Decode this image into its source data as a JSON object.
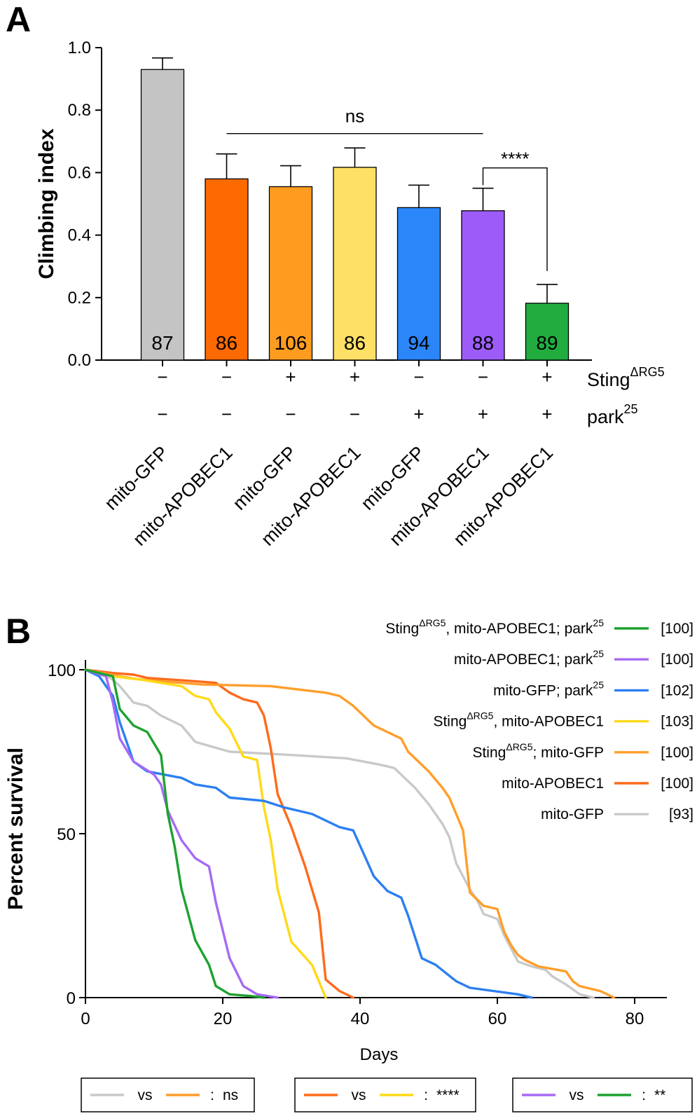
{
  "panels": {
    "a": "A",
    "b": "B"
  },
  "chart_data": [
    {
      "type": "bar",
      "ylabel": "Climbing index",
      "ylim": [
        0,
        1.0
      ],
      "yticks": [
        "0.0",
        "0.2",
        "0.4",
        "0.6",
        "0.8",
        "1.0"
      ],
      "ytick_values": [
        0,
        0.2,
        0.4,
        0.6,
        0.8,
        1.0
      ],
      "categories": [
        "mito-GFP",
        "mito-APOBEC1",
        "mito-GFP",
        "mito-APOBEC1",
        "mito-GFP",
        "mito-APOBEC1",
        "mito-APOBEC1"
      ],
      "values": [
        0.93,
        0.58,
        0.555,
        0.617,
        0.488,
        0.478,
        0.182
      ],
      "errors": [
        0.037,
        0.08,
        0.067,
        0.062,
        0.072,
        0.072,
        0.06
      ],
      "n_labels": [
        "87",
        "86",
        "106",
        "86",
        "94",
        "88",
        "89"
      ],
      "colors": [
        "#c4c4c4",
        "#ff6a00",
        "#ff9c1f",
        "#ffe066",
        "#2b86fa",
        "#9d5cf8",
        "#22ac3f"
      ],
      "rows": [
        {
          "label": "Sting",
          "superscript": "ΔRG5",
          "signs": [
            "−",
            "−",
            "+",
            "+",
            "−",
            "−",
            "+"
          ]
        },
        {
          "label": "park",
          "superscript": "25",
          "signs": [
            "−",
            "−",
            "−",
            "−",
            "+",
            "+",
            "+"
          ]
        }
      ],
      "annotations": [
        {
          "text": "ns",
          "from_bar": 2,
          "to_bar": 6,
          "y": 0.725
        },
        {
          "text": "****",
          "from_bar": 6,
          "to_bar": 7,
          "y": 0.615
        }
      ]
    },
    {
      "type": "line",
      "xlabel": "Days",
      "ylabel": "Percent survival",
      "xlim": [
        0,
        84
      ],
      "ylim": [
        0,
        110
      ],
      "xticks": [
        "0",
        "20",
        "40",
        "60",
        "80"
      ],
      "xtick_values": [
        0,
        20,
        40,
        60,
        80
      ],
      "yticks": [
        "0",
        "50",
        "100"
      ],
      "ytick_values": [
        0,
        50,
        100
      ],
      "series": [
        {
          "name": "mito-GFP",
          "n": "[93]",
          "color": "#c9c9c9",
          "points": [
            [
              0,
              100
            ],
            [
              2,
              99
            ],
            [
              4,
              97
            ],
            [
              5,
              95
            ],
            [
              7,
              90
            ],
            [
              9,
              89
            ],
            [
              11,
              86
            ],
            [
              12,
              85
            ],
            [
              14,
              83
            ],
            [
              16,
              78
            ],
            [
              21,
              75
            ],
            [
              30,
              74
            ],
            [
              38,
              73
            ],
            [
              43,
              71
            ],
            [
              45,
              70
            ],
            [
              46,
              68
            ],
            [
              48,
              64
            ],
            [
              50,
              59
            ],
            [
              52,
              53
            ],
            [
              53,
              49
            ],
            [
              54,
              41
            ],
            [
              56,
              33
            ],
            [
              57,
              30
            ],
            [
              58,
              25.5
            ],
            [
              60,
              24
            ],
            [
              61,
              19
            ],
            [
              63,
              11
            ],
            [
              65,
              9.5
            ],
            [
              67,
              8.5
            ],
            [
              68,
              6.5
            ],
            [
              70,
              4
            ],
            [
              72,
              1
            ],
            [
              74,
              0
            ]
          ]
        },
        {
          "name": "mito-APOBEC1",
          "n": "[100]",
          "color": "#ff6a1a",
          "points": [
            [
              0,
              100
            ],
            [
              4,
              99
            ],
            [
              7,
              98.5
            ],
            [
              9,
              97.5
            ],
            [
              16,
              96.5
            ],
            [
              19,
              96
            ],
            [
              21,
              93
            ],
            [
              23,
              91
            ],
            [
              25,
              90
            ],
            [
              26,
              86
            ],
            [
              27,
              76
            ],
            [
              28,
              62
            ],
            [
              30,
              52
            ],
            [
              32,
              40
            ],
            [
              34,
              26
            ],
            [
              35,
              5.5
            ],
            [
              37,
              2
            ],
            [
              39,
              0
            ]
          ]
        },
        {
          "name": "StingΔRG5; mito-GFP",
          "n": "[100]",
          "color": "#ff9e2a",
          "points": [
            [
              0,
              100
            ],
            [
              5,
              98
            ],
            [
              8,
              97
            ],
            [
              17,
              95.5
            ],
            [
              27,
              95
            ],
            [
              35,
              93
            ],
            [
              37,
              92
            ],
            [
              39,
              89
            ],
            [
              42,
              83
            ],
            [
              46,
              79
            ],
            [
              47,
              75
            ],
            [
              50,
              69
            ],
            [
              52,
              64
            ],
            [
              53,
              61
            ],
            [
              54,
              56
            ],
            [
              55,
              51
            ],
            [
              56,
              32
            ],
            [
              58,
              28
            ],
            [
              60,
              27
            ],
            [
              61,
              20
            ],
            [
              62,
              16
            ],
            [
              63,
              13
            ],
            [
              64,
              11.5
            ],
            [
              66,
              9.5
            ],
            [
              70,
              8
            ],
            [
              71,
              5
            ],
            [
              72,
              3.5
            ],
            [
              75,
              2
            ],
            [
              77,
              0
            ]
          ]
        },
        {
          "name": "StingΔRG5, mito-APOBEC1",
          "n": "[103]",
          "color": "#ffd918",
          "points": [
            [
              0,
              100
            ],
            [
              4,
              98
            ],
            [
              8,
              97
            ],
            [
              14,
              95
            ],
            [
              16,
              92
            ],
            [
              18,
              91
            ],
            [
              19,
              87
            ],
            [
              21,
              82
            ],
            [
              23,
              73.5
            ],
            [
              25,
              72.5
            ],
            [
              26,
              58
            ],
            [
              27,
              48
            ],
            [
              28,
              33
            ],
            [
              30,
              17
            ],
            [
              33,
              10
            ],
            [
              35,
              0
            ]
          ]
        },
        {
          "name": "mito-GFP; park25",
          "n": "[102]",
          "color": "#2b7ff2",
          "points": [
            [
              0,
              100
            ],
            [
              2,
              98
            ],
            [
              4,
              92
            ],
            [
              5,
              84
            ],
            [
              7,
              72
            ],
            [
              9,
              69
            ],
            [
              14,
              67
            ],
            [
              16,
              65
            ],
            [
              19,
              64
            ],
            [
              21,
              61
            ],
            [
              26,
              60
            ],
            [
              29,
              58
            ],
            [
              33,
              56
            ],
            [
              37,
              52
            ],
            [
              39,
              51
            ],
            [
              42,
              37
            ],
            [
              44,
              32.5
            ],
            [
              46,
              30.5
            ],
            [
              47,
              25
            ],
            [
              49,
              12
            ],
            [
              51,
              10
            ],
            [
              54,
              5
            ],
            [
              56,
              3
            ],
            [
              63,
              1
            ],
            [
              65,
              0
            ]
          ]
        },
        {
          "name": "mito-APOBEC1; park25",
          "n": "[100]",
          "color": "#a56af5",
          "points": [
            [
              0,
              100
            ],
            [
              3,
              98
            ],
            [
              4,
              90
            ],
            [
              5,
              79
            ],
            [
              7,
              72
            ],
            [
              10,
              68
            ],
            [
              11,
              65
            ],
            [
              12,
              57
            ],
            [
              14,
              48
            ],
            [
              16,
              42.5
            ],
            [
              18,
              40
            ],
            [
              19,
              29
            ],
            [
              21,
              12
            ],
            [
              23,
              3.5
            ],
            [
              25,
              1
            ],
            [
              28,
              0
            ]
          ]
        },
        {
          "name": "StingΔRG5, mito-APOBEC1; park25",
          "n": "[100]",
          "color": "#1da230",
          "points": [
            [
              0,
              100
            ],
            [
              3,
              98.5
            ],
            [
              4,
              98
            ],
            [
              5,
              88
            ],
            [
              7,
              83
            ],
            [
              9,
              81
            ],
            [
              11,
              74
            ],
            [
              12,
              56
            ],
            [
              13,
              46
            ],
            [
              14,
              33
            ],
            [
              16,
              17.5
            ],
            [
              18,
              10
            ],
            [
              19,
              3.5
            ],
            [
              21,
              1
            ],
            [
              24,
              0.5
            ],
            [
              26,
              0
            ]
          ]
        }
      ],
      "legend": [
        {
          "series": 6,
          "label": "Sting",
          "sup": "ΔRG5",
          "rest": ", mito-APOBEC1; park",
          "sup2": "25",
          "n": "[100]"
        },
        {
          "series": 5,
          "label": "mito-APOBEC1; park",
          "sup": "25",
          "rest": "",
          "sup2": "",
          "n": "[100]"
        },
        {
          "series": 4,
          "label": "mito-GFP; park",
          "sup": "25",
          "rest": "",
          "sup2": "",
          "n": "[102]"
        },
        {
          "series": 3,
          "label": "Sting",
          "sup": "ΔRG5",
          "rest": ", mito-APOBEC1",
          "sup2": "",
          "n": "[103]"
        },
        {
          "series": 2,
          "label": "Sting",
          "sup": "ΔRG5",
          "rest": "; mito-GFP",
          "sup2": "",
          "n": "[100]"
        },
        {
          "series": 1,
          "label": "mito-APOBEC1",
          "sup": "",
          "rest": "",
          "sup2": "",
          "n": "[100]"
        },
        {
          "series": 0,
          "label": "mito-GFP",
          "sup": "",
          "rest": "",
          "sup2": "",
          "n": "[93]"
        }
      ],
      "comparisons": [
        {
          "a": 0,
          "b": 2,
          "vs": "vs",
          "colon": ":",
          "result": "ns"
        },
        {
          "a": 1,
          "b": 3,
          "vs": "vs",
          "colon": ":",
          "result": "****"
        },
        {
          "a": 5,
          "b": 6,
          "vs": "vs",
          "colon": ":",
          "result": "**"
        }
      ]
    }
  ]
}
